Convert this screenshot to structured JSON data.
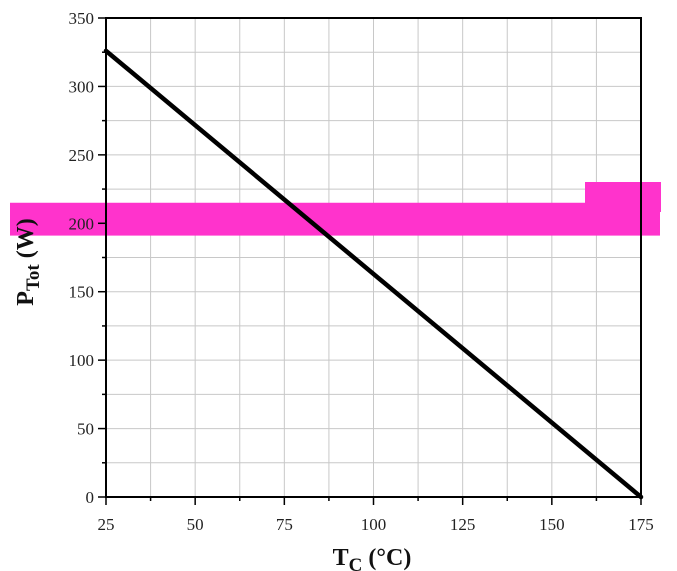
{
  "chart_data": {
    "type": "line",
    "title": "",
    "xlabel": {
      "main": "T",
      "sub": "C",
      "unit": "(°C)"
    },
    "ylabel": {
      "main": "P",
      "sub": "Tot",
      "unit": "(W)"
    },
    "xlim": [
      25,
      175
    ],
    "ylim": [
      0,
      350
    ],
    "x_ticks": [
      25,
      50,
      75,
      100,
      125,
      150,
      175
    ],
    "y_ticks": [
      0,
      50,
      100,
      150,
      200,
      250,
      300,
      350
    ],
    "grid": true,
    "series": [
      {
        "color": "#000000",
        "x": [
          25,
          175
        ],
        "y": [
          326,
          0
        ]
      }
    ],
    "overlay_color": "#ff33cc"
  }
}
